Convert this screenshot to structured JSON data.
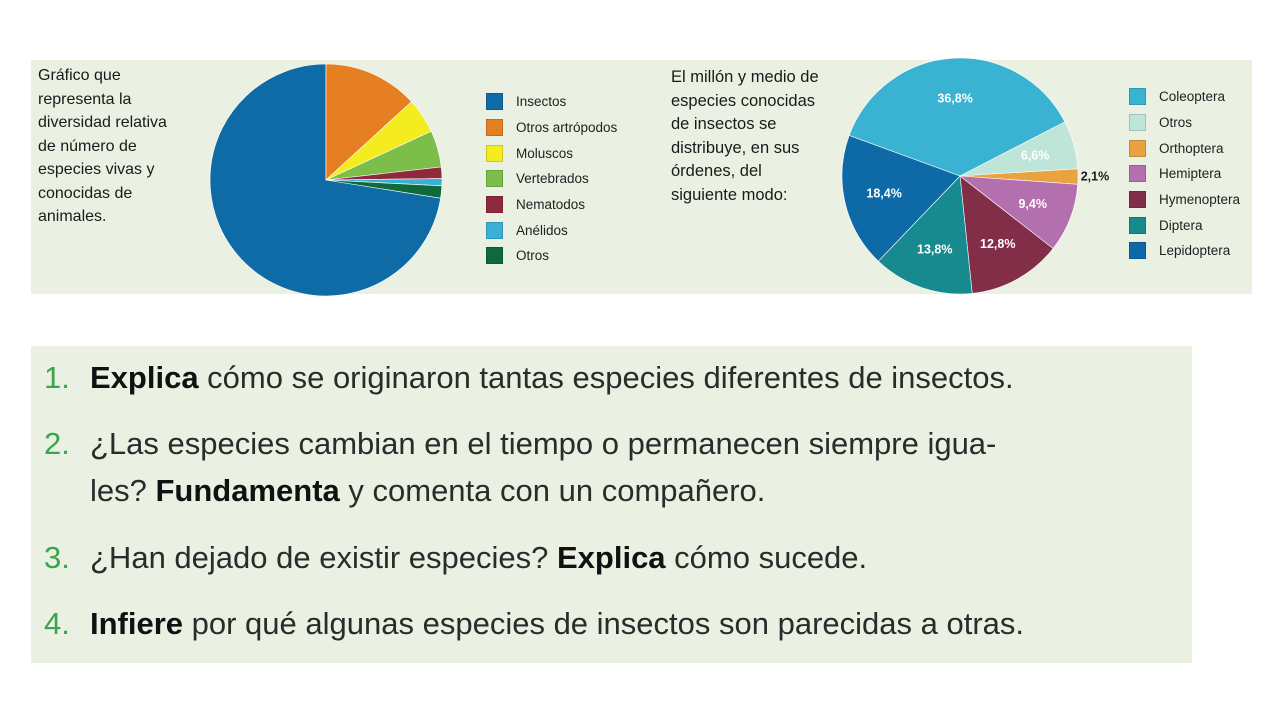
{
  "charts": {
    "left": {
      "caption": "Gráfico que representa la diversidad relativa de número de especies vivas y conocidas de animales."
    },
    "right": {
      "caption": "El millón y medio de especies conocidas de insectos se distribuye, en sus órdenes, del siguiente modo:"
    }
  },
  "chart_data": [
    {
      "type": "pie",
      "title": "",
      "legend_position": "right",
      "start_category": "Insectos",
      "categories": [
        "Insectos",
        "Otros artrópodos",
        "Moluscos",
        "Vertebrados",
        "Nematodos",
        "Anélidos",
        "Otros"
      ],
      "values": [
        72.5,
        13.2,
        4.9,
        5.1,
        1.6,
        1.0,
        1.7
      ],
      "colors": [
        "#0f6ba6",
        "#e67e22",
        "#f4ec1e",
        "#7bbf4a",
        "#8f2a3e",
        "#3bb0d6",
        "#0e6a3a"
      ],
      "show_labels": false
    },
    {
      "type": "pie",
      "title": "",
      "legend_position": "right",
      "start_category": "Coleoptera",
      "categories": [
        "Coleoptera",
        "Otros",
        "Orthoptera",
        "Hemiptera",
        "Hymenoptera",
        "Diptera",
        "Lepidoptera"
      ],
      "values": [
        36.8,
        6.6,
        2.1,
        9.4,
        12.8,
        13.8,
        18.4
      ],
      "labels": [
        "36,8%",
        "6,6%",
        "2,1%",
        "9,4%",
        "12,8%",
        "13,8%",
        "18,4%"
      ],
      "colors": [
        "#3ab3d2",
        "#bfe4d8",
        "#e8a240",
        "#b46fae",
        "#832e48",
        "#168a8e",
        "#0e6aa6"
      ],
      "show_labels": true
    }
  ],
  "questions": [
    {
      "number": "1.",
      "lines": [
        [
          {
            "t": "Explica",
            "b": true
          },
          {
            "t": " cómo se originaron tantas especies diferentes de insectos.",
            "b": false
          }
        ]
      ]
    },
    {
      "number": "2.",
      "lines": [
        [
          {
            "t": "¿Las especies cambian en el tiempo o permanecen siempre igua-",
            "b": false
          }
        ],
        [
          {
            "t": "les? ",
            "b": false
          },
          {
            "t": "Fundamenta",
            "b": true
          },
          {
            "t": " y comenta con un compañero.",
            "b": false
          }
        ]
      ]
    },
    {
      "number": "3.",
      "lines": [
        [
          {
            "t": "¿Han dejado de existir especies? ",
            "b": false
          },
          {
            "t": "Explica",
            "b": true
          },
          {
            "t": " cómo sucede.",
            "b": false
          }
        ]
      ]
    },
    {
      "number": "4.",
      "lines": [
        [
          {
            "t": "Infiere",
            "b": true
          },
          {
            "t": " por qué algunas especies de insectos son parecidas a otras.",
            "b": false
          }
        ]
      ]
    }
  ]
}
